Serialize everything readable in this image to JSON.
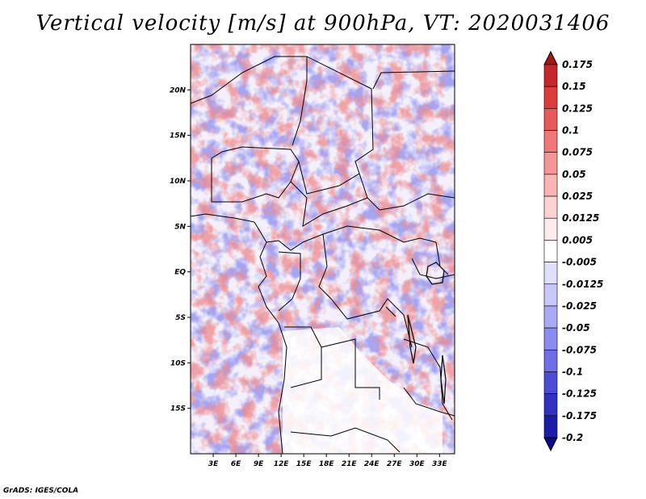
{
  "title": "Vertical velocity [m/s] at 900hPa, VT: 2020031406",
  "credit": "GrADS: IGES/COLA",
  "map": {
    "lat_labels": [
      "20N",
      "15N",
      "10N",
      "5N",
      "EQ",
      "5S",
      "10S",
      "15S"
    ],
    "lat_values": [
      20,
      15,
      10,
      5,
      0,
      -5,
      -10,
      -15
    ],
    "lon_labels": [
      "3E",
      "6E",
      "9E",
      "12E",
      "15E",
      "18E",
      "21E",
      "24E",
      "27E",
      "30E",
      "33E"
    ],
    "lon_values": [
      3,
      6,
      9,
      12,
      15,
      18,
      21,
      24,
      27,
      30,
      33
    ],
    "lon_range": [
      0,
      35
    ],
    "lat_range": [
      -20,
      25
    ]
  },
  "colorbar": {
    "labels": [
      "0.175",
      "0.15",
      "0.125",
      "0.1",
      "0.075",
      "0.05",
      "0.025",
      "0.0125",
      "0.005",
      "-0.005",
      "-0.0125",
      "-0.025",
      "-0.05",
      "-0.075",
      "-0.1",
      "-0.125",
      "-0.175",
      "-0.2"
    ],
    "colors": [
      "#a01818",
      "#c42828",
      "#dc3c3c",
      "#e85a5a",
      "#f07878",
      "#f59696",
      "#f9b4b4",
      "#fcd2d2",
      "#fdeaea",
      "#ffffff",
      "#e0e0fc",
      "#c8c8f8",
      "#aaaaf4",
      "#8c8cee",
      "#6e6ee6",
      "#4c4cd6",
      "#3232c0",
      "#1c1ca4",
      "#0a0a8a"
    ]
  }
}
